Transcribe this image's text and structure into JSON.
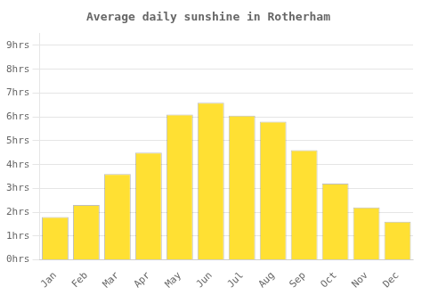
{
  "chart_data": {
    "type": "bar",
    "title": "Average daily sunshine in Rotherham",
    "categories": [
      "Jan",
      "Feb",
      "Mar",
      "Apr",
      "May",
      "Jun",
      "Jul",
      "Aug",
      "Sep",
      "Oct",
      "Nov",
      "Dec"
    ],
    "values": [
      1.8,
      2.3,
      3.6,
      4.5,
      6.1,
      6.6,
      6.05,
      5.8,
      4.6,
      3.2,
      2.2,
      1.6
    ],
    "color": "#FFE033",
    "ylim": [
      0,
      9.5
    ],
    "yticks": [
      {
        "value": 0,
        "label": "0hrs"
      },
      {
        "value": 1,
        "label": "1hrs"
      },
      {
        "value": 2,
        "label": "2hrs"
      },
      {
        "value": 3,
        "label": "3hrs"
      },
      {
        "value": 4,
        "label": "4hrs"
      },
      {
        "value": 5,
        "label": "5hrs"
      },
      {
        "value": 6,
        "label": "6hrs"
      },
      {
        "value": 7,
        "label": "7hrs"
      },
      {
        "value": 8,
        "label": "8hrs"
      },
      {
        "value": 9,
        "label": "9hrs"
      }
    ],
    "grid": true
  }
}
